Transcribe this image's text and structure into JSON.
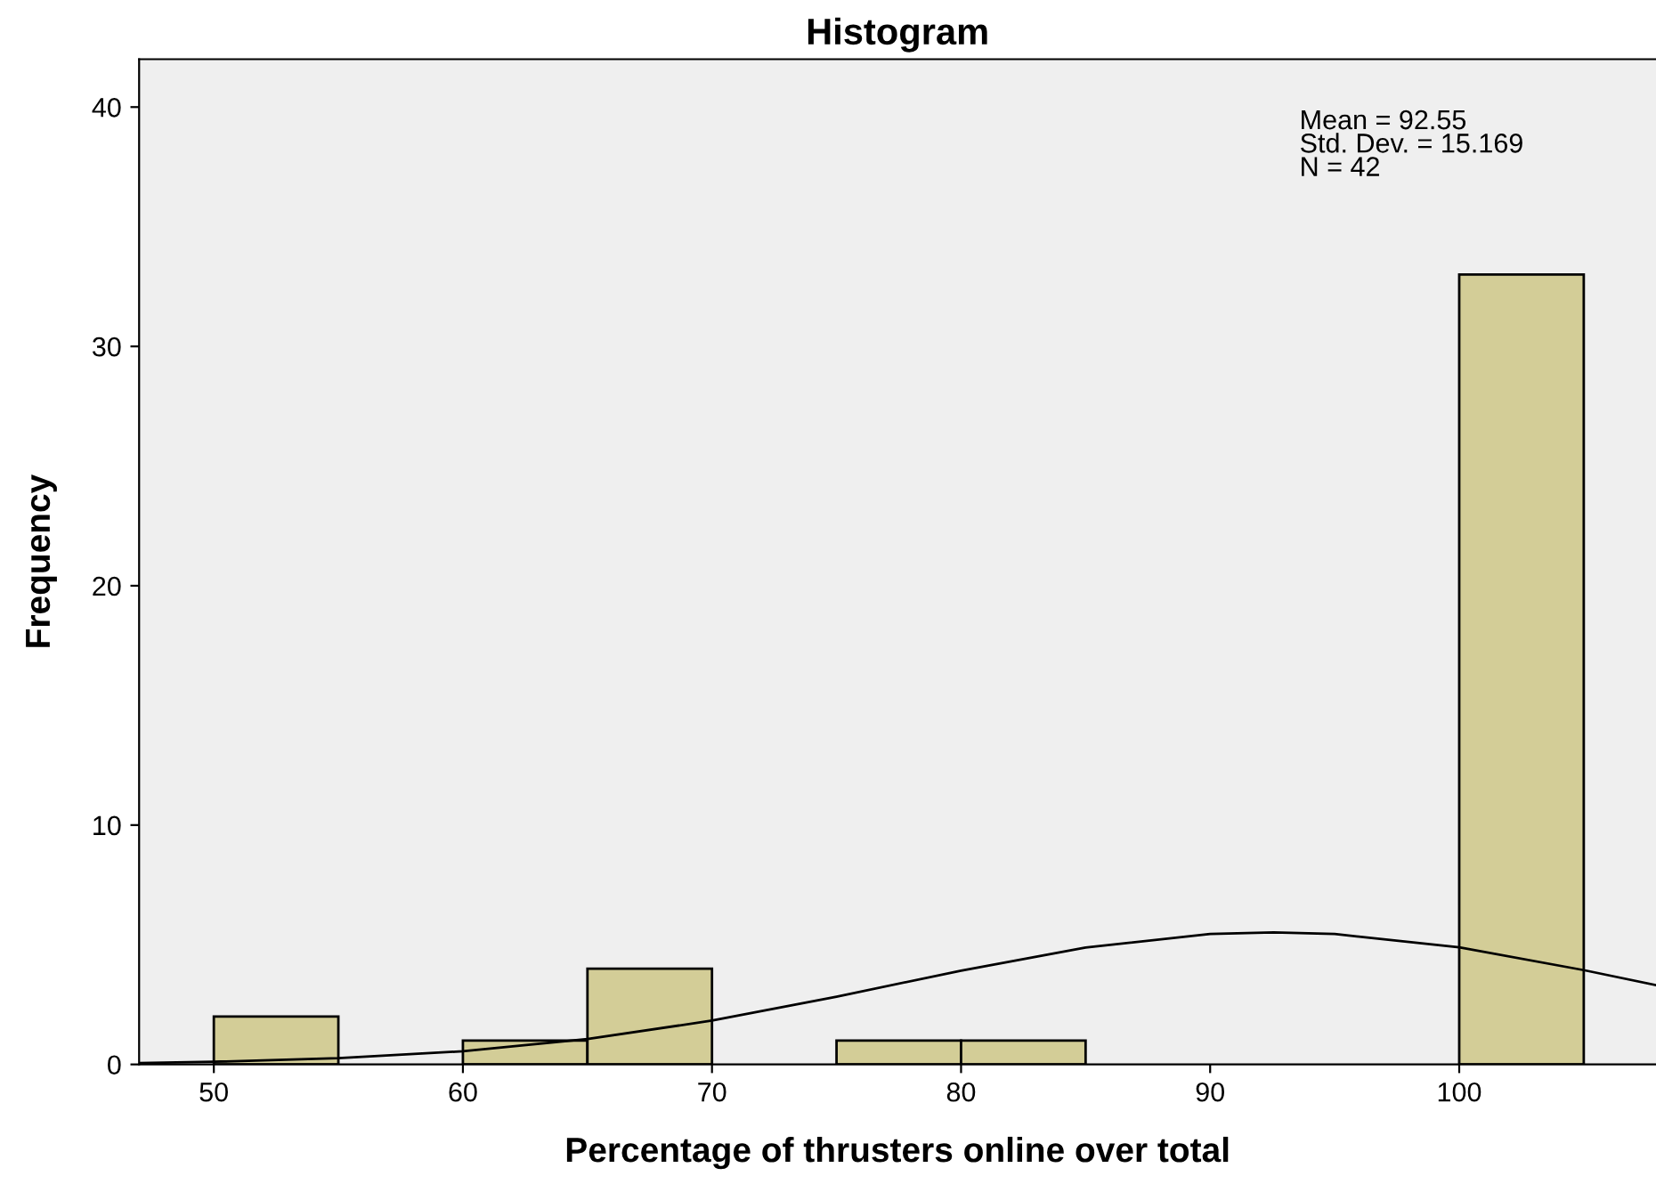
{
  "chart_data": {
    "type": "histogram",
    "title": "Histogram",
    "xlabel": "Percentage of thrusters online over total",
    "ylabel": "Frequency",
    "bins": [
      50,
      55,
      60,
      65,
      70,
      75,
      80,
      85,
      90,
      95,
      100,
      105
    ],
    "values": [
      2,
      0,
      1,
      4,
      0,
      1,
      1,
      0,
      0,
      0,
      33
    ],
    "color": "#d3cd97",
    "series": [
      {
        "type": "line",
        "color": "#000000",
        "x": [
          47,
          50,
          55,
          60,
          65,
          70,
          75,
          80,
          85,
          90,
          92.55,
          95,
          100,
          105,
          107.9
        ],
        "values": [
          0.06,
          0.11,
          0.26,
          0.55,
          1.06,
          1.83,
          2.83,
          3.92,
          4.88,
          5.45,
          5.52,
          5.45,
          4.89,
          3.94,
          3.31
        ]
      }
    ],
    "annotations": [
      "Mean = 92.55\nStd. Dev. = 15.169\nN = 42"
    ],
    "xlim": [
      47,
      107.9
    ],
    "xticks": [
      50,
      60,
      70,
      80,
      90,
      100
    ],
    "ylim": [
      0,
      42
    ],
    "yticks": [
      0,
      10,
      20,
      30,
      40
    ],
    "grid": false,
    "legend": false
  }
}
